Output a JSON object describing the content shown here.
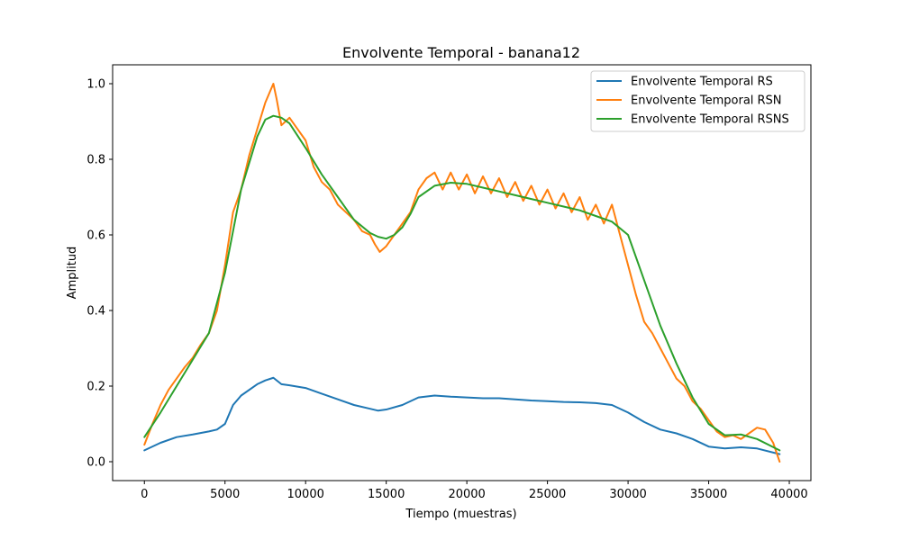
{
  "chart_data": {
    "type": "line",
    "title": "Envolvente Temporal - banana12",
    "xlabel": "Tiempo (muestras)",
    "ylabel": "Amplitud",
    "xlim": [
      -1970,
      41340
    ],
    "ylim": [
      -0.05,
      1.05
    ],
    "xticks": [
      0,
      5000,
      10000,
      15000,
      20000,
      25000,
      30000,
      35000,
      40000
    ],
    "yticks": [
      0.0,
      0.2,
      0.4,
      0.6,
      0.8,
      1.0
    ],
    "xtick_labels": [
      "0",
      "5000",
      "10000",
      "15000",
      "20000",
      "25000",
      "30000",
      "35000",
      "40000"
    ],
    "ytick_labels": [
      "0.0",
      "0.2",
      "0.4",
      "0.6",
      "0.8",
      "1.0"
    ],
    "grid": false,
    "legend_position": "top-right",
    "series": [
      {
        "name": "Envolvente Temporal RS",
        "color": "#1f77b4",
        "x": [
          0,
          1000,
          2000,
          3000,
          4000,
          4500,
          5000,
          5500,
          6000,
          7000,
          7500,
          8000,
          8500,
          9000,
          10000,
          11000,
          12000,
          13000,
          14000,
          14500,
          15000,
          16000,
          17000,
          18000,
          19000,
          20000,
          21000,
          22000,
          23000,
          24000,
          25000,
          26000,
          27000,
          28000,
          29000,
          30000,
          31000,
          32000,
          33000,
          34000,
          35000,
          36000,
          37000,
          38000,
          39400
        ],
        "y": [
          0.03,
          0.05,
          0.065,
          0.072,
          0.08,
          0.085,
          0.1,
          0.15,
          0.175,
          0.205,
          0.215,
          0.222,
          0.205,
          0.202,
          0.195,
          0.18,
          0.165,
          0.15,
          0.14,
          0.135,
          0.138,
          0.15,
          0.17,
          0.175,
          0.172,
          0.17,
          0.168,
          0.168,
          0.165,
          0.162,
          0.16,
          0.158,
          0.157,
          0.155,
          0.15,
          0.13,
          0.105,
          0.085,
          0.075,
          0.06,
          0.04,
          0.035,
          0.038,
          0.035,
          0.02
        ]
      },
      {
        "name": "Envolvente Temporal RSN",
        "color": "#ff7f0e",
        "x": [
          0,
          500,
          1000,
          1500,
          2000,
          2500,
          3000,
          3500,
          4000,
          4500,
          5000,
          5500,
          6000,
          6500,
          7000,
          7500,
          7800,
          8000,
          8200,
          8500,
          9000,
          9500,
          10000,
          10500,
          11000,
          11500,
          12000,
          12500,
          13000,
          13500,
          14000,
          14300,
          14600,
          15000,
          15500,
          16000,
          16500,
          17000,
          17500,
          18000,
          18500,
          19000,
          19500,
          20000,
          20500,
          21000,
          21500,
          22000,
          22500,
          23000,
          23500,
          24000,
          24500,
          25000,
          25500,
          26000,
          26500,
          27000,
          27500,
          28000,
          28500,
          29000,
          29500,
          30000,
          30500,
          31000,
          31500,
          32000,
          32500,
          33000,
          33500,
          34000,
          34500,
          35000,
          35500,
          36000,
          36500,
          37000,
          37500,
          38000,
          38500,
          39000,
          39400
        ],
        "y": [
          0.045,
          0.1,
          0.15,
          0.19,
          0.22,
          0.25,
          0.275,
          0.31,
          0.34,
          0.4,
          0.52,
          0.66,
          0.72,
          0.81,
          0.88,
          0.95,
          0.98,
          1.0,
          0.96,
          0.89,
          0.91,
          0.88,
          0.85,
          0.78,
          0.74,
          0.72,
          0.68,
          0.66,
          0.64,
          0.61,
          0.6,
          0.575,
          0.555,
          0.57,
          0.6,
          0.63,
          0.66,
          0.72,
          0.75,
          0.765,
          0.72,
          0.765,
          0.72,
          0.76,
          0.71,
          0.755,
          0.71,
          0.75,
          0.7,
          0.74,
          0.69,
          0.73,
          0.68,
          0.72,
          0.67,
          0.71,
          0.66,
          0.7,
          0.64,
          0.68,
          0.63,
          0.68,
          0.6,
          0.52,
          0.44,
          0.37,
          0.34,
          0.3,
          0.26,
          0.22,
          0.2,
          0.16,
          0.14,
          0.11,
          0.08,
          0.065,
          0.07,
          0.06,
          0.075,
          0.09,
          0.085,
          0.05,
          0.0
        ]
      },
      {
        "name": "Envolvente Temporal RSNS",
        "color": "#2ca02c",
        "x": [
          0,
          1000,
          2000,
          3000,
          4000,
          5000,
          6000,
          7000,
          7500,
          8000,
          8500,
          9000,
          10000,
          11000,
          12000,
          13000,
          14000,
          14500,
          15000,
          15500,
          16000,
          16500,
          17000,
          18000,
          19000,
          20000,
          21000,
          22000,
          23000,
          24000,
          25000,
          26000,
          27000,
          28000,
          29000,
          30000,
          31000,
          32000,
          33000,
          34000,
          35000,
          36000,
          37000,
          38000,
          39400
        ],
        "y": [
          0.065,
          0.13,
          0.2,
          0.27,
          0.34,
          0.5,
          0.72,
          0.86,
          0.905,
          0.915,
          0.91,
          0.895,
          0.83,
          0.76,
          0.7,
          0.64,
          0.605,
          0.595,
          0.59,
          0.6,
          0.62,
          0.655,
          0.7,
          0.73,
          0.738,
          0.735,
          0.725,
          0.715,
          0.705,
          0.695,
          0.685,
          0.675,
          0.665,
          0.65,
          0.635,
          0.6,
          0.48,
          0.36,
          0.26,
          0.17,
          0.1,
          0.07,
          0.072,
          0.06,
          0.03
        ]
      }
    ]
  }
}
